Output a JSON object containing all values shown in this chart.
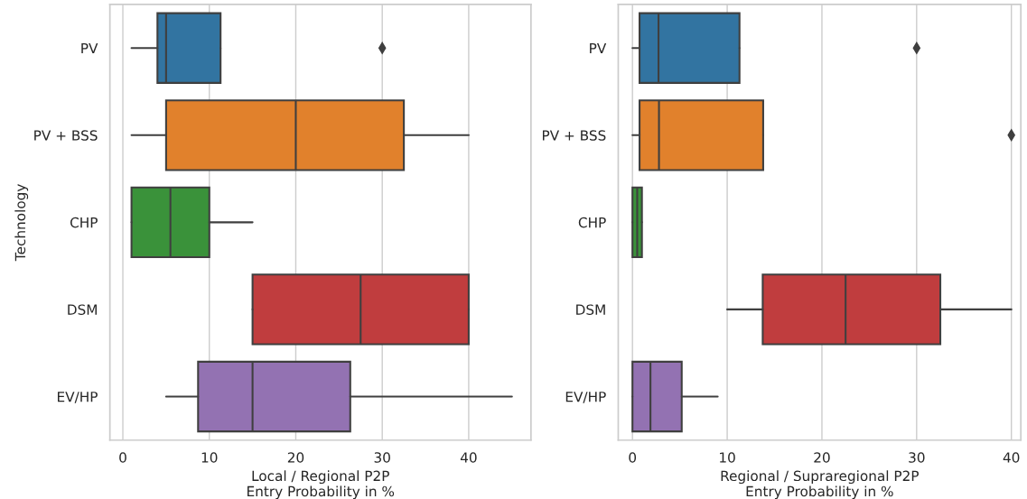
{
  "chart_data": [
    {
      "type": "box",
      "orientation": "horizontal",
      "ylabel": "Technology",
      "xlabel": "Local / Regional P2P\nEntry Probability in %",
      "categories": [
        "PV",
        "PV + BSS",
        "CHP",
        "DSM",
        "EV/HP"
      ],
      "colors": [
        "#3274a1",
        "#e1812c",
        "#3a923a",
        "#c03d3e",
        "#9372b2"
      ],
      "marker": "diamond",
      "grid": "x",
      "xlim": [
        -1.5,
        47.2
      ],
      "xticks": [
        0,
        10,
        20,
        30,
        40
      ],
      "boxes": [
        {
          "low": 1,
          "q1": 4,
          "median": 5,
          "q3": 11.3,
          "high": 11.3,
          "outliers": [
            30
          ]
        },
        {
          "low": 1,
          "q1": 5,
          "median": 20,
          "q3": 32.5,
          "high": 40
        },
        {
          "low": 1,
          "q1": 1,
          "median": 5.5,
          "q3": 10,
          "high": 15
        },
        {
          "low": 15,
          "q1": 15,
          "median": 27.5,
          "q3": 40,
          "high": 40
        },
        {
          "low": 5,
          "q1": 8.7,
          "median": 15,
          "q3": 26.3,
          "high": 45
        }
      ]
    },
    {
      "type": "box",
      "orientation": "horizontal",
      "xlabel": "Regional / Supraregional P2P\nEntry Probability in %",
      "categories": [
        "PV",
        "PV + BSS",
        "CHP",
        "DSM",
        "EV/HP"
      ],
      "colors": [
        "#3274a1",
        "#e1812c",
        "#3a923a",
        "#c03d3e",
        "#9372b2"
      ],
      "marker": "diamond",
      "grid": "x",
      "xlim": [
        -1.5,
        41
      ],
      "xticks": [
        0,
        10,
        20,
        30,
        40
      ],
      "boxes": [
        {
          "low": 0,
          "q1": 0.75,
          "median": 2.75,
          "q3": 11.3,
          "high": 11.3,
          "outliers": [
            30
          ]
        },
        {
          "low": 0,
          "q1": 0.75,
          "median": 2.8,
          "q3": 13.8,
          "high": 13.8,
          "outliers": [
            40
          ]
        },
        {
          "low": 0,
          "q1": 0,
          "median": 0.5,
          "q3": 1,
          "high": 1
        },
        {
          "low": 10,
          "q1": 13.75,
          "median": 22.5,
          "q3": 32.5,
          "high": 40
        },
        {
          "low": 0,
          "q1": 0,
          "median": 1.9,
          "q3": 5.2,
          "high": 9
        }
      ]
    }
  ]
}
